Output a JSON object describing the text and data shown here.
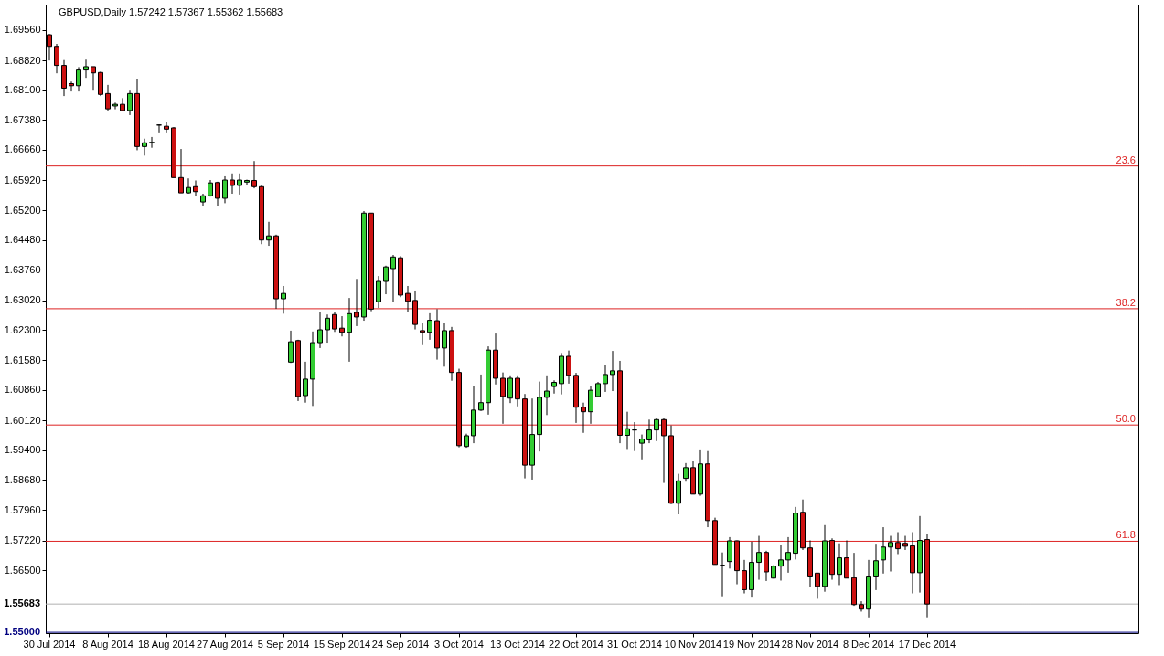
{
  "chart_data": {
    "type": "candlestick",
    "title": "GBPUSD,Daily 1.57242 1.57367 1.55362 1.55683",
    "categories": [
      "30 Jul 2014",
      null,
      null,
      null,
      null,
      null,
      null,
      null,
      "8 Aug 2014",
      null,
      null,
      null,
      null,
      null,
      null,
      null,
      "18 Aug 2014",
      null,
      null,
      null,
      null,
      null,
      null,
      null,
      "27 Aug 2014",
      null,
      null,
      null,
      null,
      null,
      null,
      null,
      "5 Sep 2014",
      null,
      null,
      null,
      null,
      null,
      null,
      null,
      "15 Sep 2014",
      null,
      null,
      null,
      null,
      null,
      null,
      null,
      "24 Sep 2014",
      null,
      null,
      null,
      null,
      null,
      null,
      null,
      "3 Oct 2014",
      null,
      null,
      null,
      null,
      null,
      null,
      null,
      "13 Oct 2014",
      null,
      null,
      null,
      null,
      null,
      null,
      null,
      "22 Oct 2014",
      null,
      null,
      null,
      null,
      null,
      null,
      null,
      "31 Oct 2014",
      null,
      null,
      null,
      null,
      null,
      null,
      null,
      "10 Nov 2014",
      null,
      null,
      null,
      null,
      null,
      null,
      null,
      "19 Nov 2014",
      null,
      null,
      null,
      null,
      null,
      null,
      null,
      "28 Nov 2014",
      null,
      null,
      null,
      null,
      null,
      null,
      null,
      "8 Dec 2014",
      null,
      null,
      null,
      null,
      null,
      null,
      null,
      "17 Dec 2014"
    ],
    "ohlc": [
      [
        1.6944,
        1.6946,
        1.6882,
        1.6916
      ],
      [
        1.6916,
        1.6922,
        1.6851,
        1.687
      ],
      [
        1.687,
        1.6883,
        1.6796,
        1.6815
      ],
      [
        1.6826,
        1.6831,
        1.6807,
        1.6821
      ],
      [
        1.6821,
        1.6866,
        1.6807,
        1.6859
      ],
      [
        1.6859,
        1.6884,
        1.684,
        1.6867
      ],
      [
        1.6867,
        1.6867,
        1.6809,
        1.6852
      ],
      [
        1.6853,
        1.6855,
        1.6796,
        1.68
      ],
      [
        1.6802,
        1.6823,
        1.6761,
        1.6765
      ],
      [
        1.6772,
        1.678,
        1.6764,
        1.6776
      ],
      [
        1.6776,
        1.6791,
        1.6761,
        1.6761
      ],
      [
        1.6761,
        1.6809,
        1.675,
        1.6802
      ],
      [
        1.6802,
        1.6838,
        1.6665,
        1.6674
      ],
      [
        1.6674,
        1.6693,
        1.6652,
        1.6683
      ],
      [
        1.6683,
        1.6697,
        1.6671,
        1.6684
      ],
      [
        1.6726,
        1.6727,
        1.6706,
        1.6726
      ],
      [
        1.6723,
        1.6734,
        1.6706,
        1.6716
      ],
      [
        1.6719,
        1.6721,
        1.6599,
        1.6599
      ],
      [
        1.6599,
        1.6668,
        1.6562,
        1.6562
      ],
      [
        1.6562,
        1.6597,
        1.656,
        1.6575
      ],
      [
        1.6577,
        1.6592,
        1.6555,
        1.6565
      ],
      [
        1.654,
        1.656,
        1.6529,
        1.6555
      ],
      [
        1.6555,
        1.6593,
        1.6553,
        1.6586
      ],
      [
        1.6587,
        1.6589,
        1.6531,
        1.6549
      ],
      [
        1.6549,
        1.6602,
        1.6537,
        1.6593
      ],
      [
        1.6593,
        1.6609,
        1.656,
        1.658
      ],
      [
        1.658,
        1.6609,
        1.6558,
        1.6593
      ],
      [
        1.6588,
        1.6594,
        1.6582,
        1.6592
      ],
      [
        1.6592,
        1.6639,
        1.6573,
        1.6577
      ],
      [
        1.6577,
        1.6582,
        1.6438,
        1.6448
      ],
      [
        1.6448,
        1.6492,
        1.6434,
        1.6458
      ],
      [
        1.6458,
        1.6461,
        1.6282,
        1.6306
      ],
      [
        1.6306,
        1.6337,
        1.627,
        1.6319
      ],
      [
        1.6153,
        1.6229,
        1.6151,
        1.6202
      ],
      [
        1.6205,
        1.6207,
        1.6059,
        1.607
      ],
      [
        1.6072,
        1.6154,
        1.6055,
        1.6112
      ],
      [
        1.6112,
        1.6227,
        1.6047,
        1.62
      ],
      [
        1.62,
        1.6273,
        1.6187,
        1.6231
      ],
      [
        1.6231,
        1.6268,
        1.62,
        1.6259
      ],
      [
        1.6268,
        1.6273,
        1.6226,
        1.6233
      ],
      [
        1.6235,
        1.6264,
        1.6215,
        1.6225
      ],
      [
        1.6225,
        1.6308,
        1.6154,
        1.627
      ],
      [
        1.6273,
        1.6354,
        1.624,
        1.6262
      ],
      [
        1.6262,
        1.6518,
        1.6253,
        1.6513
      ],
      [
        1.6513,
        1.6513,
        1.6276,
        1.6281
      ],
      [
        1.6299,
        1.6361,
        1.6284,
        1.6348
      ],
      [
        1.6348,
        1.6386,
        1.6317,
        1.6383
      ],
      [
        1.6379,
        1.6412,
        1.6298,
        1.6407
      ],
      [
        1.6405,
        1.6409,
        1.631,
        1.6315
      ],
      [
        1.6319,
        1.6337,
        1.6273,
        1.63
      ],
      [
        1.6302,
        1.6326,
        1.6232,
        1.6244
      ],
      [
        1.6229,
        1.6247,
        1.6194,
        1.6225
      ],
      [
        1.6225,
        1.6271,
        1.6207,
        1.6254
      ],
      [
        1.6253,
        1.6281,
        1.6159,
        1.6187
      ],
      [
        1.6187,
        1.6247,
        1.6142,
        1.6229
      ],
      [
        1.6229,
        1.6238,
        1.6108,
        1.6128
      ],
      [
        1.6128,
        1.6137,
        1.5947,
        1.5951
      ],
      [
        1.5949,
        1.598,
        1.5946,
        1.5975
      ],
      [
        1.5975,
        1.6096,
        1.5957,
        1.6037
      ],
      [
        1.6037,
        1.6123,
        1.6035,
        1.6055
      ],
      [
        1.6055,
        1.6191,
        1.6026,
        1.6182
      ],
      [
        1.6182,
        1.6222,
        1.6099,
        1.6114
      ],
      [
        1.6114,
        1.6128,
        1.6004,
        1.607
      ],
      [
        1.6066,
        1.6121,
        1.6054,
        1.6114
      ],
      [
        1.6114,
        1.6121,
        1.6046,
        1.6064
      ],
      [
        1.6064,
        1.6076,
        1.5872,
        1.5904
      ],
      [
        1.5904,
        1.6065,
        1.5869,
        1.5978
      ],
      [
        1.5978,
        1.6106,
        1.5937,
        1.6068
      ],
      [
        1.6068,
        1.6121,
        1.6025,
        1.6083
      ],
      [
        1.6094,
        1.6109,
        1.6077,
        1.6104
      ],
      [
        1.6101,
        1.6175,
        1.6075,
        1.6167
      ],
      [
        1.6167,
        1.6181,
        1.6101,
        1.6121
      ],
      [
        1.6121,
        1.6127,
        1.6006,
        1.6044
      ],
      [
        1.6044,
        1.6055,
        1.5982,
        1.6033
      ],
      [
        1.6033,
        1.6096,
        1.6004,
        1.6085
      ],
      [
        1.607,
        1.6105,
        1.6068,
        1.6101
      ],
      [
        1.6101,
        1.6145,
        1.6081,
        1.6123
      ],
      [
        1.6123,
        1.618,
        1.6083,
        1.6132
      ],
      [
        1.6132,
        1.6156,
        1.5957,
        1.5976
      ],
      [
        1.5976,
        1.6033,
        1.5943,
        1.5992
      ],
      [
        1.5989,
        1.6008,
        1.5938,
        1.5989
      ],
      [
        1.5957,
        1.5978,
        1.5918,
        1.5967
      ],
      [
        1.5965,
        1.6014,
        1.5957,
        1.5989
      ],
      [
        1.5989,
        1.6017,
        1.5962,
        1.6014
      ],
      [
        1.6014,
        1.6019,
        1.5861,
        1.5975
      ],
      [
        1.5975,
        1.6,
        1.581,
        1.5812
      ],
      [
        1.5812,
        1.5883,
        1.5785,
        1.5866
      ],
      [
        1.5872,
        1.5909,
        1.5864,
        1.5898
      ],
      [
        1.5898,
        1.5913,
        1.5834,
        1.5834
      ],
      [
        1.5834,
        1.5942,
        1.583,
        1.5907
      ],
      [
        1.5907,
        1.5938,
        1.5754,
        1.577
      ],
      [
        1.577,
        1.5777,
        1.5664,
        1.5664
      ],
      [
        1.5662,
        1.5693,
        1.5587,
        1.5662
      ],
      [
        1.5671,
        1.573,
        1.5654,
        1.5721
      ],
      [
        1.5721,
        1.5722,
        1.5616,
        1.5649
      ],
      [
        1.5649,
        1.5675,
        1.5594,
        1.5603
      ],
      [
        1.5603,
        1.5719,
        1.5586,
        1.5669
      ],
      [
        1.5669,
        1.5733,
        1.5627,
        1.5693
      ],
      [
        1.5693,
        1.5697,
        1.5624,
        1.5646
      ],
      [
        1.5631,
        1.5662,
        1.563,
        1.566
      ],
      [
        1.566,
        1.5711,
        1.5625,
        1.5675
      ],
      [
        1.5675,
        1.573,
        1.5644,
        1.5693
      ],
      [
        1.5691,
        1.5803,
        1.5676,
        1.5788
      ],
      [
        1.579,
        1.5821,
        1.5699,
        1.5704
      ],
      [
        1.5704,
        1.5722,
        1.5609,
        1.5636
      ],
      [
        1.5643,
        1.5643,
        1.5581,
        1.5611
      ],
      [
        1.5611,
        1.5759,
        1.5598,
        1.5721
      ],
      [
        1.5722,
        1.5727,
        1.5627,
        1.564
      ],
      [
        1.564,
        1.5715,
        1.5614,
        1.568
      ],
      [
        1.568,
        1.5722,
        1.5631,
        1.5631
      ],
      [
        1.5632,
        1.5692,
        1.5564,
        1.5567
      ],
      [
        1.5567,
        1.5575,
        1.555,
        1.5556
      ],
      [
        1.5556,
        1.5675,
        1.5536,
        1.5636
      ],
      [
        1.5636,
        1.5714,
        1.5602,
        1.5673
      ],
      [
        1.5675,
        1.5754,
        1.5642,
        1.5706
      ],
      [
        1.5706,
        1.5733,
        1.5647,
        1.5717
      ],
      [
        1.5717,
        1.5742,
        1.5689,
        1.5702
      ],
      [
        1.5715,
        1.5733,
        1.5699,
        1.5708
      ],
      [
        1.5709,
        1.5742,
        1.5594,
        1.5644
      ],
      [
        1.5644,
        1.5781,
        1.5596,
        1.5722
      ],
      [
        1.57242,
        1.57367,
        1.55362,
        1.55683
      ]
    ],
    "colors": [
      "#cc1111",
      "#cc1111",
      "#cc1111",
      "#cc1111",
      "#33cc33",
      "#33cc33",
      "#cc1111",
      "#cc1111",
      "#cc1111",
      "#33cc33",
      "#cc1111",
      "#33cc33",
      "#cc1111",
      "#33cc33",
      "#33cc33",
      "#000000",
      "#cc1111",
      "#cc1111",
      "#cc1111",
      "#33cc33",
      "#cc1111",
      "#33cc33",
      "#33cc33",
      "#cc1111",
      "#33cc33",
      "#cc1111",
      "#33cc33",
      "#33cc33",
      "#cc1111",
      "#cc1111",
      "#33cc33",
      "#cc1111",
      "#33cc33",
      "#33cc33",
      "#cc1111",
      "#33cc33",
      "#33cc33",
      "#33cc33",
      "#33cc33",
      "#cc1111",
      "#cc1111",
      "#33cc33",
      "#cc1111",
      "#33cc33",
      "#cc1111",
      "#33cc33",
      "#33cc33",
      "#33cc33",
      "#cc1111",
      "#cc1111",
      "#cc1111",
      "#cc1111",
      "#33cc33",
      "#cc1111",
      "#33cc33",
      "#cc1111",
      "#cc1111",
      "#33cc33",
      "#33cc33",
      "#33cc33",
      "#33cc33",
      "#cc1111",
      "#cc1111",
      "#33cc33",
      "#cc1111",
      "#cc1111",
      "#33cc33",
      "#33cc33",
      "#33cc33",
      "#33cc33",
      "#33cc33",
      "#cc1111",
      "#cc1111",
      "#cc1111",
      "#33cc33",
      "#33cc33",
      "#33cc33",
      "#33cc33",
      "#cc1111",
      "#33cc33",
      "#000000",
      "#33cc33",
      "#33cc33",
      "#33cc33",
      "#cc1111",
      "#cc1111",
      "#33cc33",
      "#33cc33",
      "#cc1111",
      "#33cc33",
      "#cc1111",
      "#cc1111",
      "#000000",
      "#33cc33",
      "#cc1111",
      "#cc1111",
      "#33cc33",
      "#33cc33",
      "#cc1111",
      "#33cc33",
      "#33cc33",
      "#33cc33",
      "#33cc33",
      "#cc1111",
      "#cc1111",
      "#cc1111",
      "#33cc33",
      "#cc1111",
      "#33cc33",
      "#cc1111",
      "#cc1111",
      "#cc1111",
      "#33cc33",
      "#33cc33",
      "#33cc33",
      "#33cc33",
      "#cc1111",
      "#cc1111",
      "#cc1111",
      "#33cc33",
      "#cc1111"
    ],
    "ylim": [
      1.5498,
      1.7017
    ],
    "yticks": [
      {
        "value": 1.6956,
        "label": "1.69560"
      },
      {
        "value": 1.6882,
        "label": "1.68820"
      },
      {
        "value": 1.681,
        "label": "1.68100"
      },
      {
        "value": 1.6738,
        "label": "1.67380"
      },
      {
        "value": 1.6666,
        "label": "1.66660"
      },
      {
        "value": 1.6592,
        "label": "1.65920"
      },
      {
        "value": 1.652,
        "label": "1.65200"
      },
      {
        "value": 1.6448,
        "label": "1.64480"
      },
      {
        "value": 1.6376,
        "label": "1.63760"
      },
      {
        "value": 1.6302,
        "label": "1.63020"
      },
      {
        "value": 1.623,
        "label": "1.62300"
      },
      {
        "value": 1.6158,
        "label": "1.61580"
      },
      {
        "value": 1.6086,
        "label": "1.60860"
      },
      {
        "value": 1.6012,
        "label": "1.60120"
      },
      {
        "value": 1.594,
        "label": "1.59400"
      },
      {
        "value": 1.5868,
        "label": "1.58680"
      },
      {
        "value": 1.5796,
        "label": "1.57960"
      },
      {
        "value": 1.5722,
        "label": "1.57220"
      },
      {
        "value": 1.565,
        "label": "1.56500"
      }
    ],
    "ref_lines": [
      {
        "axis": "y",
        "value": 1.6627,
        "color": "#dd2222"
      },
      {
        "axis": "y",
        "value": 1.6282,
        "color": "#dd2222"
      },
      {
        "axis": "y",
        "value": 1.6001,
        "color": "#dd2222"
      },
      {
        "axis": "y",
        "value": 1.572,
        "color": "#dd2222"
      },
      {
        "axis": "y",
        "value": 1.55683,
        "label": "1.55683",
        "color": "#b0b0b0"
      },
      {
        "axis": "y",
        "value": 1.55,
        "label": "1.55000",
        "color": "#000080"
      }
    ],
    "annotations": [
      {
        "text": "23.6",
        "y": 1.6627
      },
      {
        "text": "38.2",
        "y": 1.6282
      },
      {
        "text": "50.0",
        "y": 1.6001
      },
      {
        "text": "61.8",
        "y": 1.572
      }
    ]
  }
}
